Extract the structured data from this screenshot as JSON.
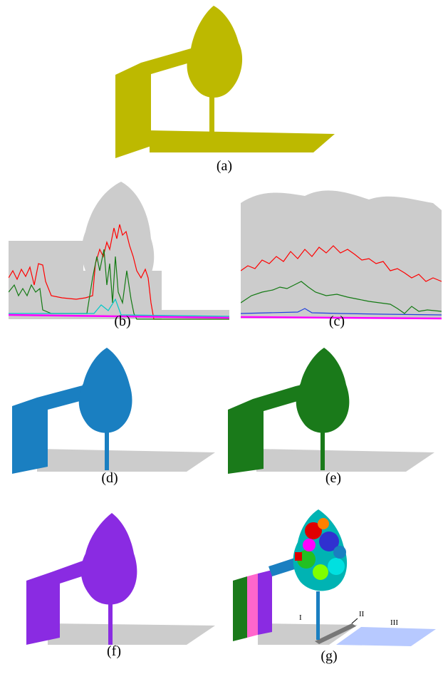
{
  "captions": {
    "a": "(a)",
    "b": "(b)",
    "c": "(c)",
    "d": "(d)",
    "e": "(e)",
    "f": "(f)",
    "g": "(g)"
  },
  "region_labels": {
    "one": "I",
    "two": "II",
    "three": "III"
  },
  "colors": {
    "panel_a": "#bdb900",
    "panel_d": "#1a7fc1",
    "panel_e": "#1a7a1a",
    "panel_f": "#8a2be2",
    "ground": "#cccccc",
    "line_red": "#ff0000",
    "line_green": "#137a13",
    "line_blue": "#1f3fe0",
    "line_magenta": "#ff00ff",
    "line_cyan": "#00c8c8"
  }
}
